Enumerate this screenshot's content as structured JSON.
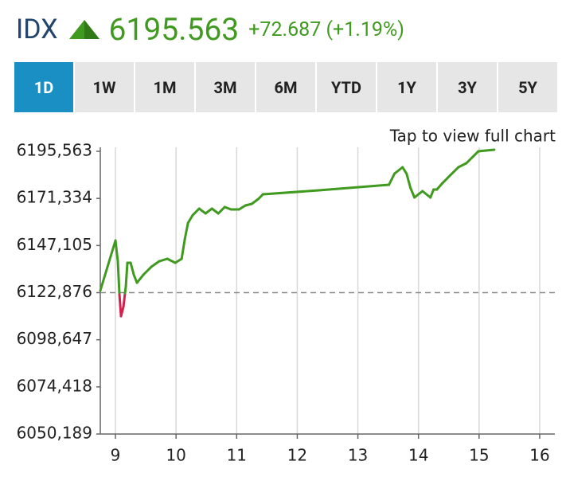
{
  "header": {
    "symbol": "IDX",
    "price": "6195.563",
    "change": "+72.687 (+1.19%)"
  },
  "tabs": [
    "1D",
    "1W",
    "1M",
    "3M",
    "6M",
    "YTD",
    "1Y",
    "3Y",
    "5Y"
  ],
  "active_tab": 0,
  "chart_link": "Tap to view full chart",
  "chart_data": {
    "type": "line",
    "x": [
      8.75,
      9,
      9.039,
      9.066,
      9.092,
      9.132,
      9.158,
      9.171,
      9.197,
      9.25,
      9.303,
      9.355,
      9.461,
      9.592,
      9.724,
      9.855,
      9.987,
      10.092,
      10.145,
      10.197,
      10.276,
      10.382,
      10.487,
      10.592,
      10.697,
      10.803,
      10.908,
      11.039,
      11.145,
      11.25,
      11.355,
      11.434,
      12.355,
      13.513,
      13.605,
      13.737,
      13.803,
      13.868,
      13.934,
      14.066,
      14.197,
      14.25,
      14.303,
      14.395,
      14.526,
      14.658,
      14.789,
      14.987,
      15.25
    ],
    "values": [
      6123.9,
      6149.7,
      6139.05,
      6121.85,
      6110.79,
      6115.71,
      6122.67,
      6125.96,
      6138.23,
      6138.23,
      6132.09,
      6127.99,
      6132.09,
      6136.18,
      6139.05,
      6140.28,
      6138.23,
      6140.28,
      6150.52,
      6158.71,
      6162.8,
      6166.08,
      6163.62,
      6166.08,
      6163.62,
      6166.9,
      6165.67,
      6165.67,
      6167.72,
      6168.54,
      6170.99,
      6173.45,
      6175.5,
      6178.36,
      6184.1,
      6187.37,
      6184.1,
      6176.73,
      6171.81,
      6175.09,
      6171.81,
      6175.91,
      6175.91,
      6179.18,
      6183.28,
      6187.37,
      6189.42,
      6195.56,
      6196.38
    ],
    "color": "#3f9a1f",
    "below_color": "#d3204f",
    "reference_line": 6122.876,
    "xlim": [
      8.75,
      16.25
    ],
    "xticks": [
      9,
      10,
      11,
      12,
      13,
      14,
      15,
      16
    ],
    "ylim": [
      6050.189,
      6195.563
    ],
    "yticks": [
      {
        "value": 6050.189,
        "label": "6050,189"
      },
      {
        "value": 6074.418,
        "label": "6074,418"
      },
      {
        "value": 6098.647,
        "label": "6098,647"
      },
      {
        "value": 6122.876,
        "label": "6122,876"
      },
      {
        "value": 6147.105,
        "label": "6147,105"
      },
      {
        "value": 6171.334,
        "label": "6171,334"
      },
      {
        "value": 6195.563,
        "label": "6195,563"
      }
    ],
    "grid": true
  }
}
